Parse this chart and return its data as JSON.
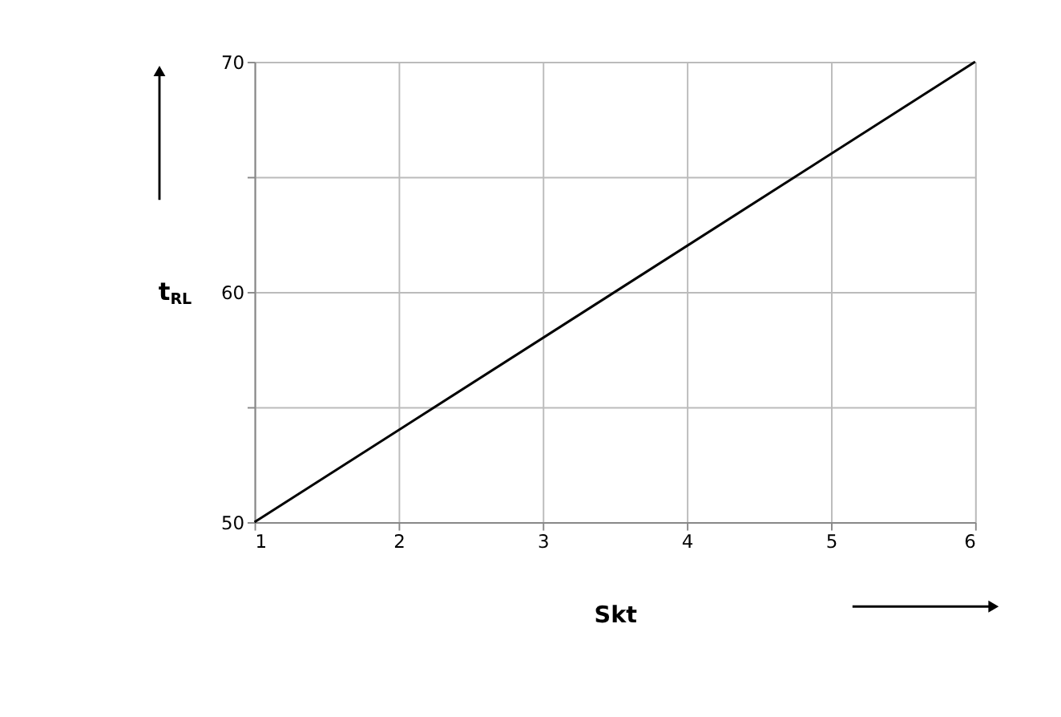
{
  "chart_data": {
    "type": "line",
    "x": [
      1,
      6
    ],
    "values": [
      50,
      70
    ],
    "color": "#000000",
    "xlabel": "Skt",
    "ylabel": "t$_{RL}$",
    "xlim": [
      1,
      6
    ],
    "xticks": [
      1,
      2,
      3,
      4,
      5,
      6
    ],
    "ylim": [
      50,
      70
    ],
    "yticks": [
      50,
      {
        "value": 55,
        "label": null
      },
      60,
      {
        "value": 65,
        "label": null
      },
      70
    ],
    "grid": true,
    "marker": "none",
    "line_style": "solid"
  }
}
